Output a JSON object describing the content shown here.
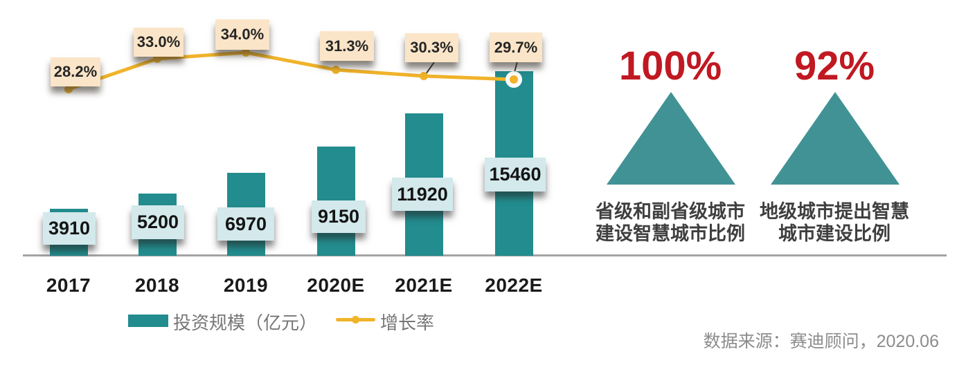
{
  "chart_data": {
    "type": "bar",
    "title": "",
    "categories": [
      "2017",
      "2018",
      "2019",
      "2020E",
      "2021E",
      "2022E"
    ],
    "series": [
      {
        "name": "投资规模（亿元）",
        "kind": "bar",
        "values": [
          3910,
          5200,
          6970,
          9150,
          11920,
          15460
        ],
        "value_labels": [
          "3910",
          "5200",
          "6970",
          "9150",
          "11920",
          "15460"
        ],
        "color": "#238C8E"
      },
      {
        "name": "增长率",
        "kind": "line",
        "values_percent": [
          28.2,
          33.0,
          34.0,
          31.3,
          30.3,
          29.7
        ],
        "value_labels": [
          "28.2%",
          "33.0%",
          "34.0%",
          "31.3%",
          "30.3%",
          "29.7%"
        ],
        "color": "#F0B32A"
      }
    ],
    "xlabel": "",
    "ylabel": "",
    "ylim_bars": [
      0,
      16000
    ],
    "ylim_line_percent": [
      0,
      40
    ],
    "grid": false,
    "legend_position": "bottom",
    "label_box_colors": {
      "bar_labels": "#D3E9EC",
      "line_labels": "#FBE5C8"
    }
  },
  "highlights": [
    {
      "value": "100%",
      "caption_line1": "省级和副省级城市",
      "caption_line2": "建设智慧城市比例",
      "triangle_color": "#419295",
      "value_color": "#C01922"
    },
    {
      "value": "92%",
      "caption_line1": "地级城市提出智慧",
      "caption_line2": "城市建设比例",
      "triangle_color": "#419295",
      "value_color": "#C01922"
    }
  ],
  "source": {
    "text": "数据来源：赛迪顾问，2020.06"
  }
}
